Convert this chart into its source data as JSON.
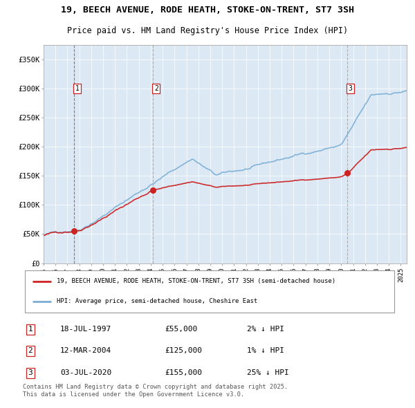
{
  "title": "19, BEECH AVENUE, RODE HEATH, STOKE-ON-TRENT, ST7 3SH",
  "subtitle": "Price paid vs. HM Land Registry's House Price Index (HPI)",
  "bg_color": "#dce9f5",
  "red_line_label": "19, BEECH AVENUE, RODE HEATH, STOKE-ON-TRENT, ST7 3SH (semi-detached house)",
  "blue_line_label": "HPI: Average price, semi-detached house, Cheshire East",
  "footer": "Contains HM Land Registry data © Crown copyright and database right 2025.\nThis data is licensed under the Open Government Licence v3.0.",
  "sales": [
    {
      "num": 1,
      "date": "18-JUL-1997",
      "price": 55000,
      "pct": "2% ↓ HPI",
      "year": 1997.54
    },
    {
      "num": 2,
      "date": "12-MAR-2004",
      "price": 125000,
      "pct": "1% ↓ HPI",
      "year": 2004.19
    },
    {
      "num": 3,
      "date": "03-JUL-2020",
      "price": 155000,
      "pct": "25% ↓ HPI",
      "year": 2020.5
    }
  ],
  "xmin": 1995,
  "xmax": 2025.5,
  "ymin": 0,
  "ymax": 375000,
  "yticks": [
    0,
    50000,
    100000,
    150000,
    200000,
    250000,
    300000,
    350000
  ],
  "ytick_labels": [
    "£0",
    "£50K",
    "£100K",
    "£150K",
    "£200K",
    "£250K",
    "£300K",
    "£350K"
  ],
  "hpi_seed": 42,
  "red_color": "#cc2222",
  "blue_color": "#7aadd4"
}
